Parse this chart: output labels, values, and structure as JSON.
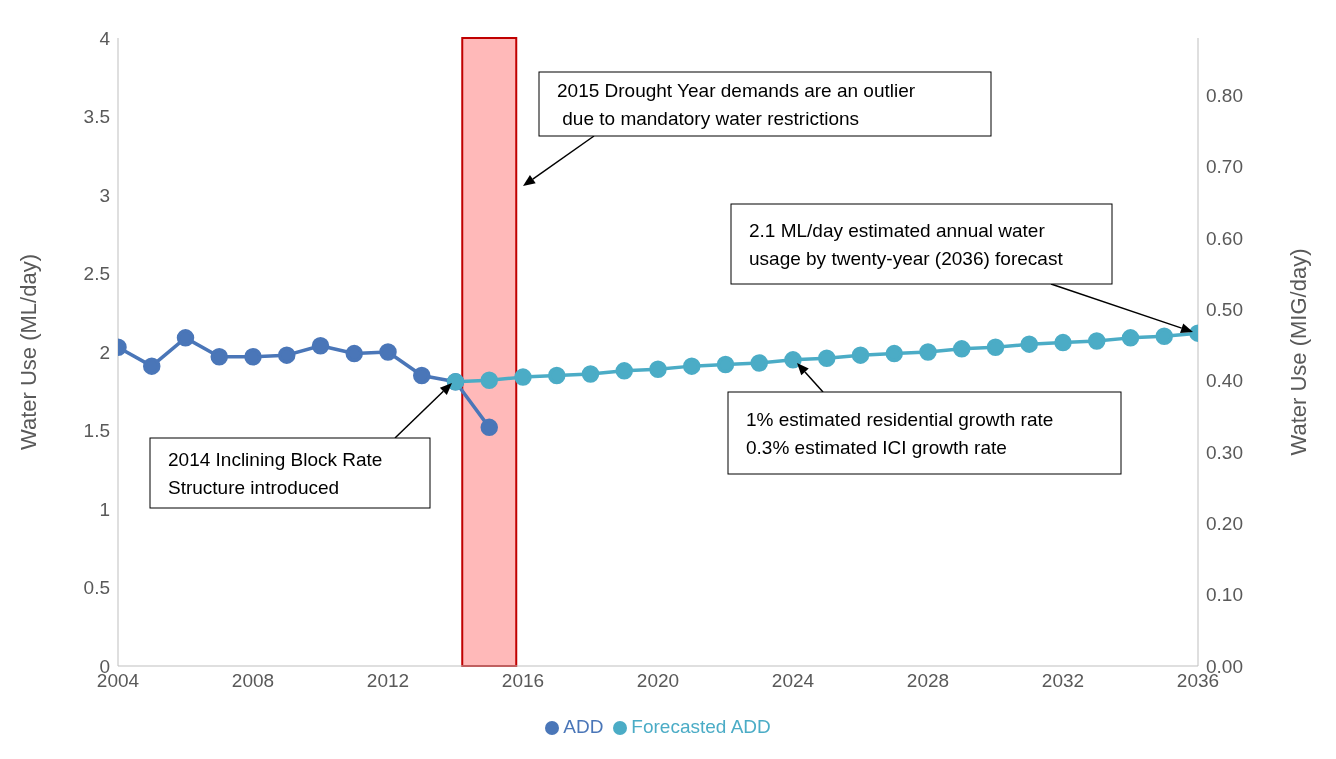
{
  "chart_data": {
    "type": "line",
    "ylabel": "Water Use (ML/day)",
    "y2label": "Water Use (MIG/day)",
    "series": [
      {
        "name": "ADD",
        "color": "#4a76b8",
        "x": [
          2004,
          2005,
          2006,
          2007,
          2008,
          2009,
          2010,
          2011,
          2012,
          2013,
          2014,
          2015
        ],
        "values": [
          2.03,
          1.91,
          2.09,
          1.97,
          1.97,
          1.98,
          2.04,
          1.99,
          2.0,
          1.85,
          1.81,
          1.52
        ]
      },
      {
        "name": "Forecasted ADD",
        "color": "#4bacc6",
        "x": [
          2014,
          2015,
          2016,
          2017,
          2018,
          2019,
          2020,
          2021,
          2022,
          2023,
          2024,
          2025,
          2026,
          2027,
          2028,
          2029,
          2030,
          2031,
          2032,
          2033,
          2034,
          2035,
          2036
        ],
        "values": [
          1.81,
          1.82,
          1.84,
          1.85,
          1.86,
          1.88,
          1.89,
          1.91,
          1.92,
          1.93,
          1.95,
          1.96,
          1.98,
          1.99,
          2.0,
          2.02,
          2.03,
          2.05,
          2.06,
          2.07,
          2.09,
          2.1,
          2.12
        ]
      }
    ],
    "xlim": [
      2004,
      2036
    ],
    "xticks": [
      2004,
      2008,
      2012,
      2016,
      2020,
      2024,
      2028,
      2032,
      2036
    ],
    "ylim": [
      0,
      4
    ],
    "yticks": [
      0,
      0.5,
      1,
      1.5,
      2,
      2.5,
      3,
      3.5,
      4
    ],
    "y2lim": [
      0,
      0.88
    ],
    "y2ticks": [
      {
        "value": 0,
        "label": "0.00"
      },
      {
        "value": 0.1,
        "label": "0.10"
      },
      {
        "value": 0.2,
        "label": "0.20"
      },
      {
        "value": 0.3,
        "label": "0.30"
      },
      {
        "value": 0.4,
        "label": "0.40"
      },
      {
        "value": 0.5,
        "label": "0.50"
      },
      {
        "value": 0.6,
        "label": "0.60"
      },
      {
        "value": 0.7,
        "label": "0.70"
      },
      {
        "value": 0.8,
        "label": "0.80"
      }
    ],
    "bands": [
      {
        "axis": "x",
        "from": 2014.2,
        "to": 2015.8,
        "color": "#ffb9b9"
      }
    ],
    "annotations": [
      "2015 Drought Year demands are an outlier\n due to mandatory water restrictions",
      "2.1 ML/day estimated annual water\nusage by twenty-year (2036) forecast",
      "1% estimated residential growth rate\n0.3% estimated ICI growth rate",
      "2014 Inclining Block Rate\nStructure introduced"
    ],
    "marker": "circle",
    "grid": false,
    "legend": "bottom"
  }
}
